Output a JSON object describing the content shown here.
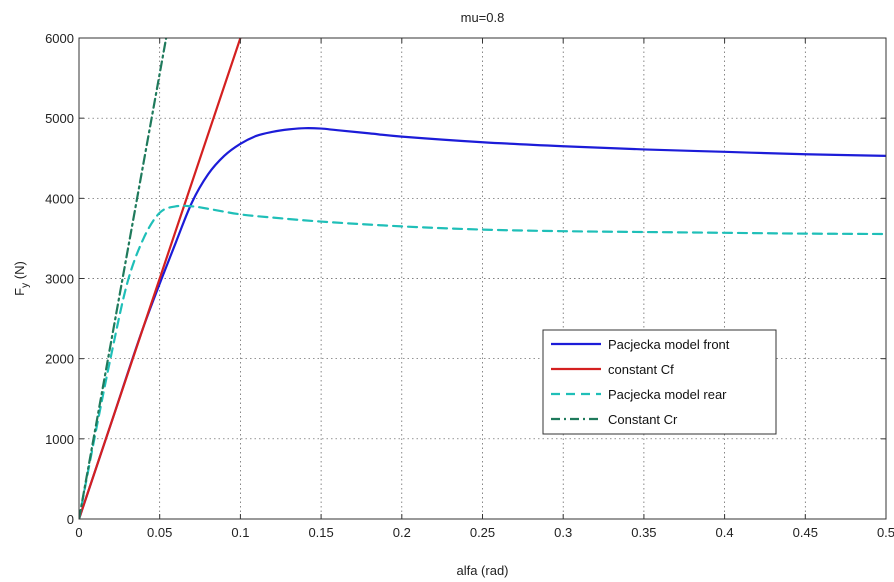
{
  "chart_data": {
    "type": "line",
    "title": "mu=0.8",
    "xlabel": "alfa (rad)",
    "ylabel": "Fy (N)",
    "ylabel_main": "F",
    "ylabel_sub": "y",
    "ylabel_rest": " (N)",
    "xlim": [
      0,
      0.5
    ],
    "ylim": [
      0,
      6000
    ],
    "xticks": [
      "0",
      "0.05",
      "0.1",
      "0.15",
      "0.2",
      "0.25",
      "0.3",
      "0.35",
      "0.4",
      "0.45",
      "0.5"
    ],
    "yticks": [
      "0",
      "1000",
      "2000",
      "3000",
      "4000",
      "5000",
      "6000"
    ],
    "grid": true,
    "legend_position": "lower-right",
    "series": [
      {
        "name": "Pacjecka model front",
        "color": "#1c1cd8",
        "style": "solid",
        "x": [
          0,
          0.02,
          0.04,
          0.06,
          0.07,
          0.08,
          0.09,
          0.1,
          0.11,
          0.12,
          0.13,
          0.14,
          0.15,
          0.16,
          0.18,
          0.2,
          0.25,
          0.3,
          0.35,
          0.4,
          0.45,
          0.5
        ],
        "y": [
          0,
          1200,
          2400,
          3450,
          3950,
          4300,
          4530,
          4680,
          4780,
          4830,
          4860,
          4875,
          4870,
          4850,
          4810,
          4770,
          4700,
          4650,
          4610,
          4580,
          4550,
          4530
        ]
      },
      {
        "name": "constant Cf",
        "color": "#d42020",
        "style": "solid",
        "x": [
          0,
          0.1
        ],
        "y": [
          0,
          6000
        ]
      },
      {
        "name": "Pacjecka model rear",
        "color": "#1fbfb8",
        "style": "dashed",
        "x": [
          0,
          0.01,
          0.02,
          0.03,
          0.04,
          0.05,
          0.06,
          0.07,
          0.08,
          0.1,
          0.12,
          0.15,
          0.2,
          0.25,
          0.3,
          0.35,
          0.4,
          0.45,
          0.5
        ],
        "y": [
          0,
          1050,
          2050,
          2950,
          3500,
          3820,
          3900,
          3900,
          3870,
          3800,
          3760,
          3710,
          3650,
          3610,
          3590,
          3580,
          3570,
          3560,
          3555
        ]
      },
      {
        "name": "Constant Cr",
        "color": "#1f7a5c",
        "style": "dashdot",
        "x": [
          0,
          0.054
        ],
        "y": [
          0,
          6000
        ]
      }
    ]
  }
}
